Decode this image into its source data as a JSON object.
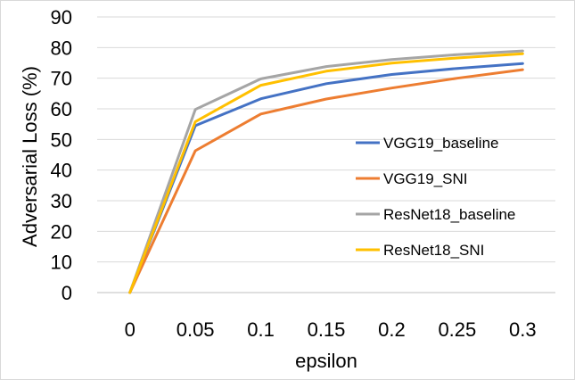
{
  "chart_data": {
    "type": "line",
    "title": "",
    "xlabel": "epsilon",
    "ylabel": "Adversarial Loss (%)",
    "x": [
      0,
      0.05,
      0.1,
      0.15,
      0.2,
      0.25,
      0.3
    ],
    "x_tick_labels": [
      "0",
      "0.05",
      "0.1",
      "0.15",
      "0.2",
      "0.25",
      "0.3"
    ],
    "y_ticks": [
      0,
      10,
      20,
      30,
      40,
      50,
      60,
      70,
      80,
      90
    ],
    "ylim": [
      0,
      90
    ],
    "grid": "horizontal",
    "legend_position": "center-right",
    "series": [
      {
        "name": "VGG19_baseline",
        "color": "#4472c4",
        "values": [
          0,
          54.5,
          63.3,
          68.2,
          71.2,
          73.2,
          74.8
        ]
      },
      {
        "name": "VGG19_SNI",
        "color": "#ed7d31",
        "values": [
          0,
          46.3,
          58.3,
          63.2,
          66.8,
          70.0,
          72.8
        ]
      },
      {
        "name": "ResNet18_baseline",
        "color": "#a5a5a5",
        "values": [
          0,
          59.8,
          69.8,
          73.8,
          76.1,
          77.7,
          78.9
        ]
      },
      {
        "name": "ResNet18_SNI",
        "color": "#ffc000",
        "values": [
          0,
          55.8,
          67.7,
          72.3,
          74.9,
          76.6,
          78.0
        ]
      }
    ]
  }
}
